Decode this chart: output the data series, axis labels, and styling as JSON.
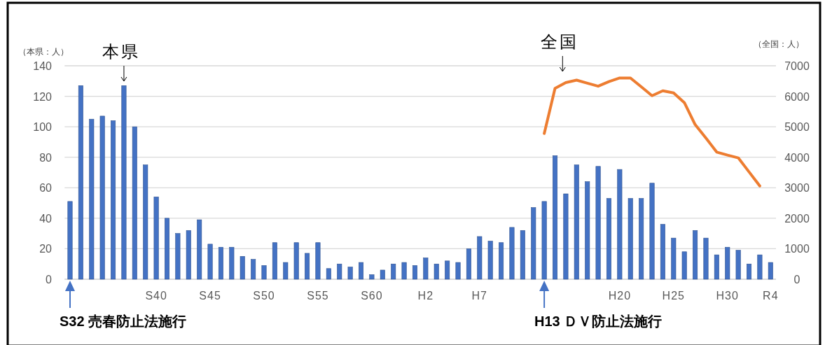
{
  "chart_data": {
    "type": "bar",
    "categories": [
      null,
      null,
      null,
      null,
      null,
      null,
      null,
      null,
      "S40",
      null,
      null,
      null,
      null,
      "S45",
      null,
      null,
      null,
      null,
      "S50",
      null,
      null,
      null,
      null,
      "S55",
      null,
      null,
      null,
      null,
      "S60",
      null,
      null,
      null,
      null,
      "H2",
      null,
      null,
      null,
      null,
      "H7",
      null,
      null,
      null,
      null,
      null,
      null,
      null,
      null,
      null,
      null,
      null,
      null,
      "H20",
      null,
      null,
      null,
      null,
      "H25",
      null,
      null,
      null,
      null,
      "H30",
      null,
      null,
      null,
      "R4"
    ],
    "series": [
      {
        "name": "本県",
        "color": "#4472c4",
        "values": [
          51,
          127,
          105,
          107,
          104,
          127,
          100,
          75,
          54,
          40,
          30,
          32,
          39,
          23,
          21,
          21,
          15,
          13,
          9,
          24,
          11,
          24,
          17,
          24,
          7,
          10,
          8,
          11,
          3,
          6,
          10,
          11,
          9,
          14,
          10,
          12,
          11,
          20,
          28,
          25,
          24,
          34,
          32,
          47,
          51,
          81,
          56,
          75,
          64,
          74,
          53,
          72,
          53,
          53,
          63,
          36,
          27,
          18,
          32,
          27,
          16,
          21,
          19,
          10,
          16,
          11
        ]
      },
      {
        "name": "全国",
        "type": "line",
        "axis": "y2",
        "color": "#ed7d31",
        "values": [
          null,
          null,
          null,
          null,
          null,
          null,
          null,
          null,
          null,
          null,
          null,
          null,
          null,
          null,
          null,
          null,
          null,
          null,
          null,
          null,
          null,
          null,
          null,
          null,
          null,
          null,
          null,
          null,
          null,
          null,
          null,
          null,
          null,
          null,
          null,
          null,
          null,
          null,
          null,
          null,
          null,
          null,
          null,
          null,
          4780,
          6260,
          6450,
          6530,
          6430,
          6330,
          6480,
          6600,
          6600,
          6310,
          6020,
          6180,
          6110,
          5790,
          5070,
          4630,
          4170,
          4070,
          3980,
          3520,
          3060,
          null
        ]
      }
    ],
    "ylim": [
      0,
      140
    ],
    "yticks": [
      0,
      20,
      40,
      60,
      80,
      100,
      120,
      140
    ],
    "y2lim": [
      0,
      7000
    ],
    "y2ticks": [
      0,
      1000,
      2000,
      3000,
      4000,
      5000,
      6000,
      7000
    ],
    "ylabel": "（本県：人）",
    "y2label": "（全国：人）",
    "grid": "y",
    "legend": false,
    "annotations": [
      "S32 売春防止法施行",
      "H13 ＤＶ防止法施行"
    ]
  }
}
